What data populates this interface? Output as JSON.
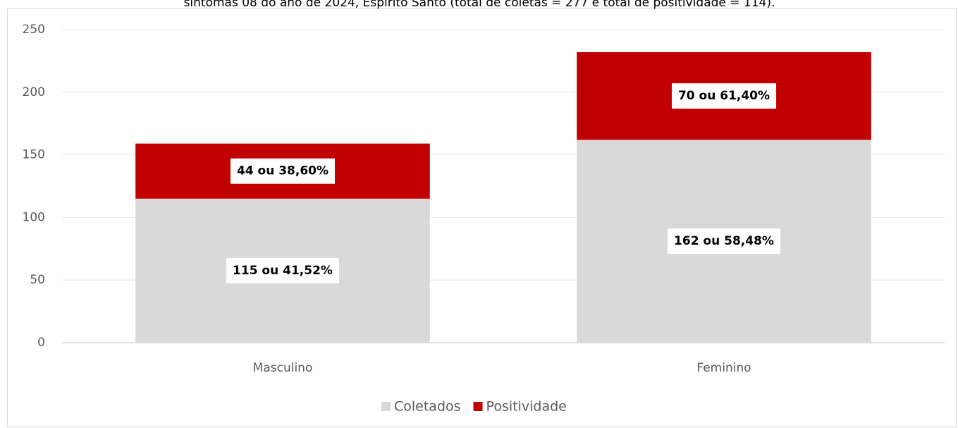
{
  "chart_data": {
    "type": "stacked_bar",
    "title": "sintomas 08 do ano de 2024, Espírito Santo (total de coletas = 277 e total de positividade = 114).",
    "categories": [
      "Masculino",
      "Feminino"
    ],
    "series": [
      {
        "name": "Coletados",
        "color": "#d9d9d9",
        "values": [
          115,
          162
        ],
        "value_labels": [
          "115 ou 41,52%",
          "162 ou 58,48%"
        ]
      },
      {
        "name": "Positividade",
        "color": "#c00000",
        "values": [
          44,
          70
        ],
        "value_labels": [
          "44 ou 38,60%",
          "70 ou 61,40%"
        ]
      }
    ],
    "ylim": [
      0,
      250
    ],
    "yticks": [
      0,
      50,
      100,
      150,
      200,
      250
    ],
    "grid": true,
    "legend": "bottom"
  }
}
